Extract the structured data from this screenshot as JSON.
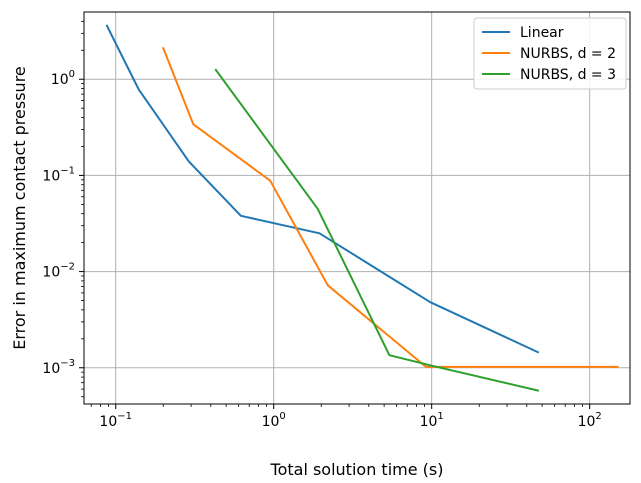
{
  "chart_data": {
    "type": "line",
    "title": "",
    "xlabel": "Total solution time (s)",
    "ylabel": "Error in maximum contact pressure",
    "xscale": "log",
    "yscale": "log",
    "xlim": [
      0.063,
      180
    ],
    "ylim": [
      0.00042,
      5
    ],
    "grid": true,
    "legend_position": "upper right",
    "x_ticks": [
      {
        "value": 0.1,
        "base": "10",
        "exp": "−1"
      },
      {
        "value": 1,
        "base": "10",
        "exp": "0"
      },
      {
        "value": 10,
        "base": "10",
        "exp": "1"
      },
      {
        "value": 100,
        "base": "10",
        "exp": "2"
      }
    ],
    "y_ticks": [
      {
        "value": 0.001,
        "base": "10",
        "exp": "−3"
      },
      {
        "value": 0.01,
        "base": "10",
        "exp": "−2"
      },
      {
        "value": 0.1,
        "base": "10",
        "exp": "−1"
      },
      {
        "value": 1,
        "base": "10",
        "exp": "0"
      }
    ],
    "series": [
      {
        "name": "Linear",
        "color": "#1f77b4",
        "x": [
          0.088,
          0.14,
          0.29,
          0.62,
          1.95,
          9.8,
          47
        ],
        "y": [
          3.6,
          0.78,
          0.14,
          0.038,
          0.025,
          0.0048,
          0.00145
        ]
      },
      {
        "name": "NURBS, d = 2",
        "color": "#ff7f0e",
        "x": [
          0.2,
          0.31,
          0.95,
          2.2,
          9.2,
          150
        ],
        "y": [
          2.1,
          0.34,
          0.088,
          0.0072,
          0.00102,
          0.00102
        ]
      },
      {
        "name": "NURBS, d = 3",
        "color": "#2ca02c",
        "x": [
          0.43,
          1.9,
          5.4,
          10,
          47
        ],
        "y": [
          1.25,
          0.045,
          0.00135,
          0.00105,
          0.00058
        ]
      }
    ]
  }
}
